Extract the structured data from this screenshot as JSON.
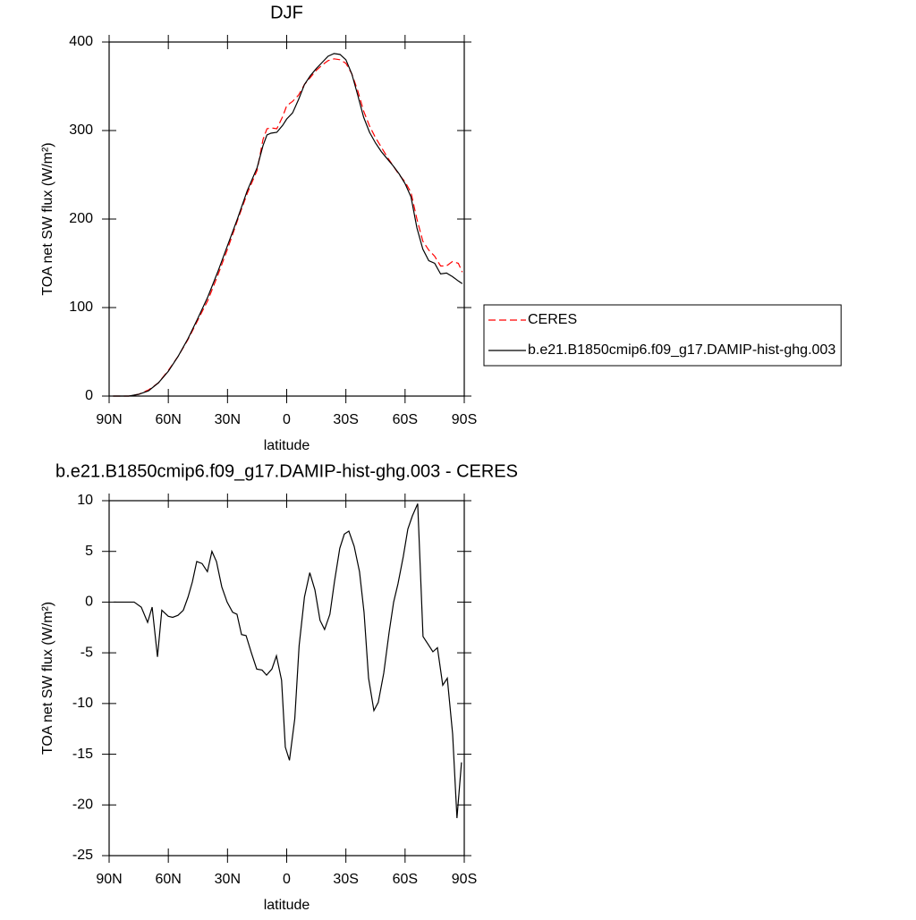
{
  "chart_data": [
    {
      "type": "line",
      "title": "DJF",
      "xlabel": "latitude",
      "ylabel": "TOA net SW flux (W/m²)",
      "x": [
        88,
        80,
        75,
        70,
        65,
        60,
        55,
        50,
        45,
        40,
        35,
        30,
        25,
        20,
        15,
        12,
        10,
        8,
        5,
        2,
        0,
        -3,
        -6,
        -9,
        -12,
        -15,
        -18,
        -21,
        -24,
        -27,
        -30,
        -33,
        -36,
        -39,
        -42,
        -45,
        -48,
        -51,
        -54,
        -57,
        -60,
        -63,
        -66,
        -69,
        -72,
        -75,
        -78,
        -81,
        -84,
        -87,
        -89
      ],
      "series": [
        {
          "name": "CERES",
          "color": "#ff0000",
          "style": "dashed",
          "values": [
            0,
            0,
            2,
            7,
            15,
            29,
            45,
            64,
            86,
            108,
            136,
            166,
            198,
            229,
            255,
            290,
            302,
            303,
            302,
            316,
            328,
            333,
            340,
            352,
            360,
            368,
            374,
            379,
            381,
            380,
            376,
            364,
            345,
            322,
            305,
            292,
            281,
            270,
            260,
            250,
            242,
            230,
            200,
            175,
            165,
            158,
            147,
            147,
            152,
            150,
            140
          ]
        },
        {
          "name": "b.e21.B1850cmip6.f09_g17.DAMIP-hist-ghg.003",
          "color": "#000000",
          "style": "solid",
          "values": [
            0,
            0,
            2,
            6,
            15,
            28,
            45,
            65,
            88,
            112,
            140,
            170,
            200,
            232,
            258,
            283,
            295,
            297,
            298,
            306,
            313,
            320,
            335,
            352,
            362,
            370,
            377,
            384,
            387,
            386,
            380,
            364,
            340,
            315,
            298,
            286,
            276,
            268,
            260,
            251,
            240,
            225,
            190,
            166,
            153,
            150,
            138,
            139,
            135,
            130,
            127
          ]
        }
      ],
      "xlim": [
        90,
        -90
      ],
      "ylim": [
        0,
        400
      ],
      "xticks": [
        {
          "value": 90,
          "label": "90N"
        },
        {
          "value": 60,
          "label": "60N"
        },
        {
          "value": 30,
          "label": "30N"
        },
        0,
        {
          "value": -30,
          "label": "30S"
        },
        {
          "value": -60,
          "label": "60S"
        },
        {
          "value": -90,
          "label": "90S"
        }
      ],
      "yticks": [
        0,
        100,
        200,
        300,
        400
      ],
      "legend": "right"
    },
    {
      "type": "line",
      "title": "b.e21.B1850cmip6.f09_g17.DAMIP-hist-ghg.003 - CERES",
      "xlabel": "latitude",
      "ylabel": "TOA net SW flux (W/m²)",
      "x": [
        87.7,
        77.3,
        73.7,
        70.5,
        68.2,
        65.5,
        63.3,
        60,
        57.8,
        55.1,
        52.4,
        50,
        47.8,
        45.6,
        42.9,
        40.2,
        37.9,
        35.6,
        32.9,
        30.2,
        27.4,
        25.2,
        22.9,
        20.6,
        17.9,
        15.2,
        12.5,
        10.2,
        7.5,
        5.2,
        2.6,
        0.7,
        -1.4,
        -4.1,
        -6.3,
        -9,
        -11.7,
        -14.3,
        -16.9,
        -19.2,
        -21.9,
        -24.2,
        -26.9,
        -29.2,
        -31.5,
        -34.2,
        -36.9,
        -39.2,
        -41.5,
        -44.2,
        -46.4,
        -49.2,
        -51.9,
        -54.2,
        -56.4,
        -59.1,
        -61.4,
        -63.7,
        -66.4,
        -69.1,
        -71.8,
        -74.1,
        -76.4,
        -79.1,
        -81.4,
        -84.1,
        -86.3,
        -88.6
      ],
      "series": [
        {
          "color": "#000000",
          "style": "solid",
          "values": [
            0,
            0,
            -0.5,
            -2,
            -0.5,
            -5.4,
            -0.8,
            -1.4,
            -1.5,
            -1.3,
            -0.8,
            0.5,
            2,
            4,
            3.8,
            3,
            5,
            4,
            1.5,
            0,
            -1,
            -1.2,
            -3.2,
            -3.3,
            -5,
            -6.6,
            -6.7,
            -7.2,
            -6.6,
            -5.3,
            -7.7,
            -14.3,
            -15.6,
            -11.5,
            -4.3,
            0.5,
            2.9,
            1.2,
            -1.8,
            -2.7,
            -1.2,
            2,
            5.3,
            6.7,
            7,
            5.5,
            3,
            -1,
            -7.5,
            -10.7,
            -9.9,
            -7,
            -3,
            0,
            1.8,
            4.5,
            7.2,
            8.5,
            9.7,
            -3.4,
            -4.2,
            -4.9,
            -4.5,
            -8.2,
            -7.5,
            -13,
            -21.3,
            -15.8
          ]
        }
      ],
      "xlim": [
        90,
        -90
      ],
      "ylim": [
        -25,
        10
      ],
      "xticks": [
        {
          "value": 90,
          "label": "90N"
        },
        {
          "value": 60,
          "label": "60N"
        },
        {
          "value": 30,
          "label": "30N"
        },
        0,
        {
          "value": -30,
          "label": "30S"
        },
        {
          "value": -60,
          "label": "60S"
        },
        {
          "value": -90,
          "label": "90S"
        }
      ],
      "yticks": [
        -25,
        -20,
        -15,
        -10,
        -5,
        0,
        5,
        10
      ]
    }
  ]
}
